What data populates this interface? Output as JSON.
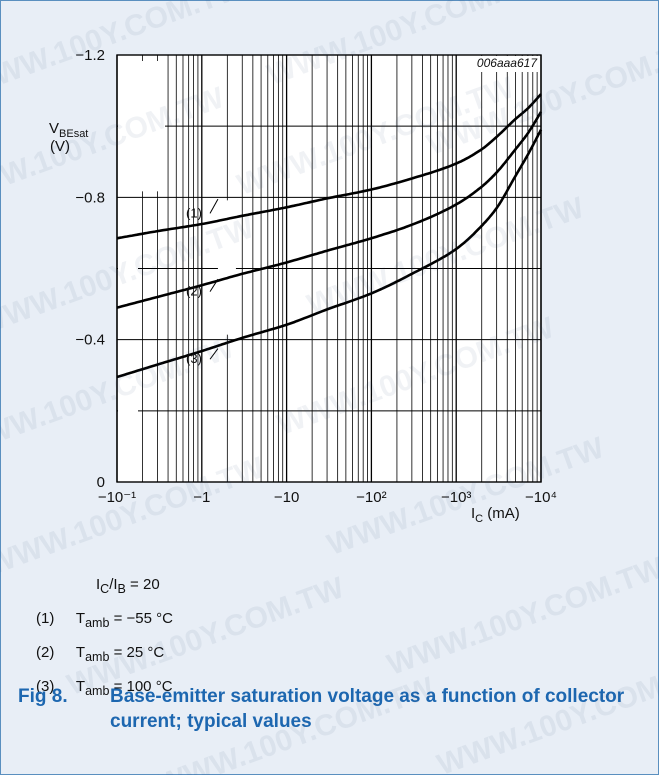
{
  "chart_data": {
    "type": "line",
    "code": "006aaa617",
    "xscale": "log",
    "xlim": [
      0.1,
      10000
    ],
    "ylim": [
      0,
      -1.2
    ],
    "grid": true,
    "xlabel": "I_C (mA)",
    "ylabel_line1": "V_BEsat",
    "ylabel_line2": "(V)",
    "yticks": [
      {
        "value": 0,
        "label": "0"
      },
      {
        "value": -0.4,
        "label": "−0.4"
      },
      {
        "value": -0.8,
        "label": "−0.8"
      },
      {
        "value": -1.2,
        "label": "−1.2"
      }
    ],
    "xticks": [
      {
        "value": 0.1,
        "label": "−10⁻¹"
      },
      {
        "value": 1,
        "label": "−1"
      },
      {
        "value": 10,
        "label": "−10"
      },
      {
        "value": 100,
        "label": "−10²"
      },
      {
        "value": 1000,
        "label": "−10³"
      },
      {
        "value": 10000,
        "label": "−10⁴"
      }
    ],
    "series": [
      {
        "name": "(1)",
        "x": [
          0.1,
          0.3,
          1,
          3,
          10,
          30,
          100,
          300,
          1000,
          2000,
          3000,
          5000,
          7000,
          10000
        ],
        "y": [
          -0.685,
          -0.705,
          -0.725,
          -0.748,
          -0.772,
          -0.797,
          -0.822,
          -0.853,
          -0.895,
          -0.935,
          -0.97,
          -1.02,
          -1.05,
          -1.09
        ]
      },
      {
        "name": "(2)",
        "x": [
          0.1,
          0.3,
          1,
          3,
          10,
          30,
          100,
          300,
          1000,
          2000,
          3000,
          5000,
          7000,
          10000
        ],
        "y": [
          -0.49,
          -0.52,
          -0.553,
          -0.585,
          -0.617,
          -0.65,
          -0.685,
          -0.723,
          -0.78,
          -0.83,
          -0.87,
          -0.935,
          -0.98,
          -1.04
        ]
      },
      {
        "name": "(3)",
        "x": [
          0.1,
          0.3,
          1,
          3,
          10,
          30,
          100,
          300,
          1000,
          2000,
          3000,
          5000,
          7000,
          10000
        ],
        "y": [
          -0.295,
          -0.33,
          -0.368,
          -0.405,
          -0.442,
          -0.485,
          -0.53,
          -0.585,
          -0.655,
          -0.72,
          -0.77,
          -0.86,
          -0.92,
          -0.99
        ]
      }
    ]
  },
  "legend": {
    "condition": "I_C/I_B = 20",
    "items": [
      {
        "num": "(1)",
        "text": "T_amb = −55 °C"
      },
      {
        "num": "(2)",
        "text": "T_amb = 25 °C"
      },
      {
        "num": "(3)",
        "text": "T_amb = 100 °C"
      }
    ]
  },
  "caption": {
    "fig": "Fig 8.",
    "title": "Base-emitter saturation voltage as a function of collector current; typical values"
  },
  "watermark": "WWW.100Y.COM.TW"
}
